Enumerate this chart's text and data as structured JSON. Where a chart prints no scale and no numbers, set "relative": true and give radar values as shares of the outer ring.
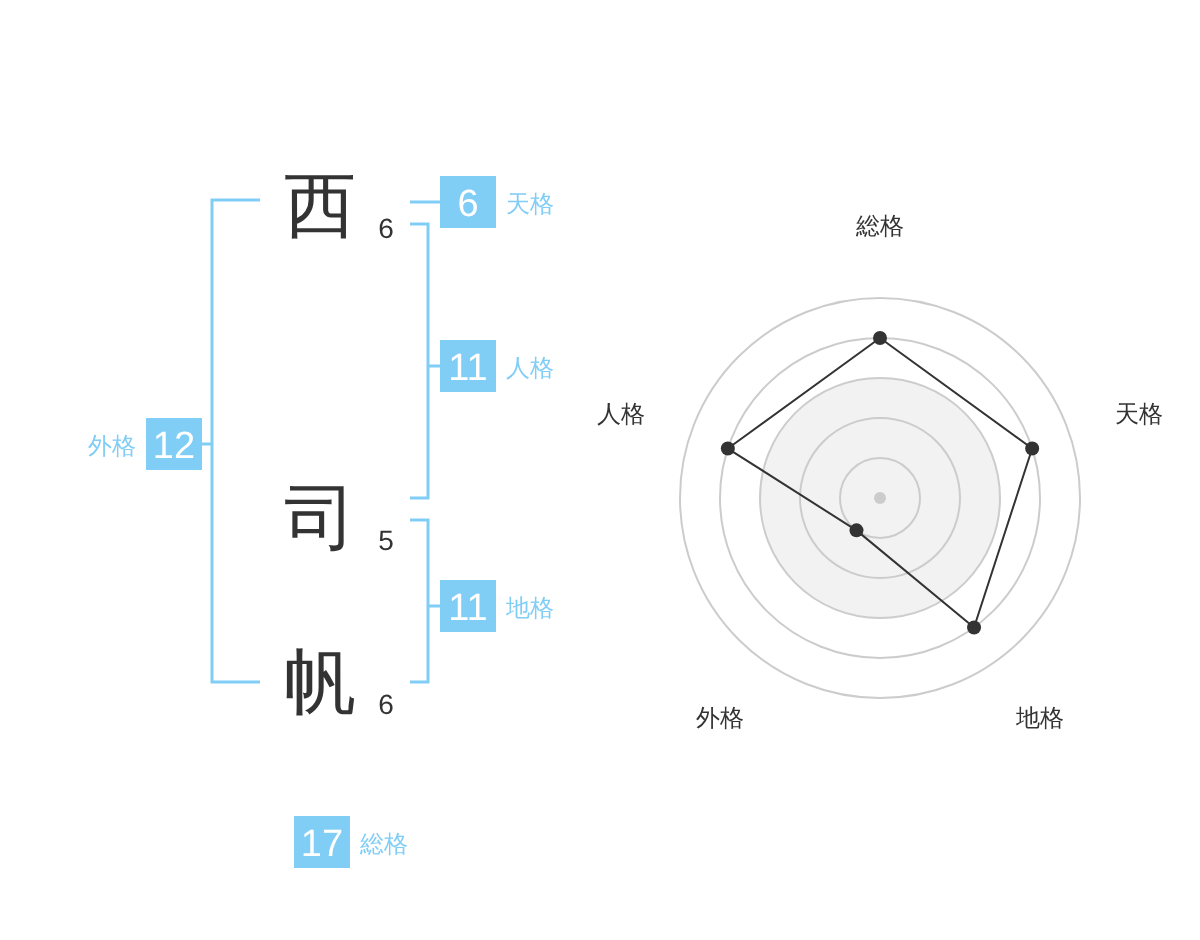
{
  "chart_data": [
    {
      "type": "other",
      "categories": [
        "西",
        "司",
        "帆"
      ],
      "values": [
        6,
        5,
        6
      ],
      "data_labels": true,
      "color": "#333333"
    },
    {
      "type": "other",
      "categories": [
        "天格",
        "人格",
        "地格",
        "外格",
        "総格"
      ],
      "values": [
        6,
        11,
        11,
        12,
        17
      ],
      "data_labels": true,
      "color": "#80cdf6"
    },
    {
      "type": "radar",
      "categories": [
        "総格",
        "天格",
        "地格",
        "外格",
        "人格"
      ],
      "relative": true,
      "grid": true,
      "marker": "circle",
      "series": [
        {
          "values": [
            0.8,
            0.8,
            0.8,
            0.2,
            0.8
          ],
          "color": "#333333"
        }
      ]
    }
  ]
}
